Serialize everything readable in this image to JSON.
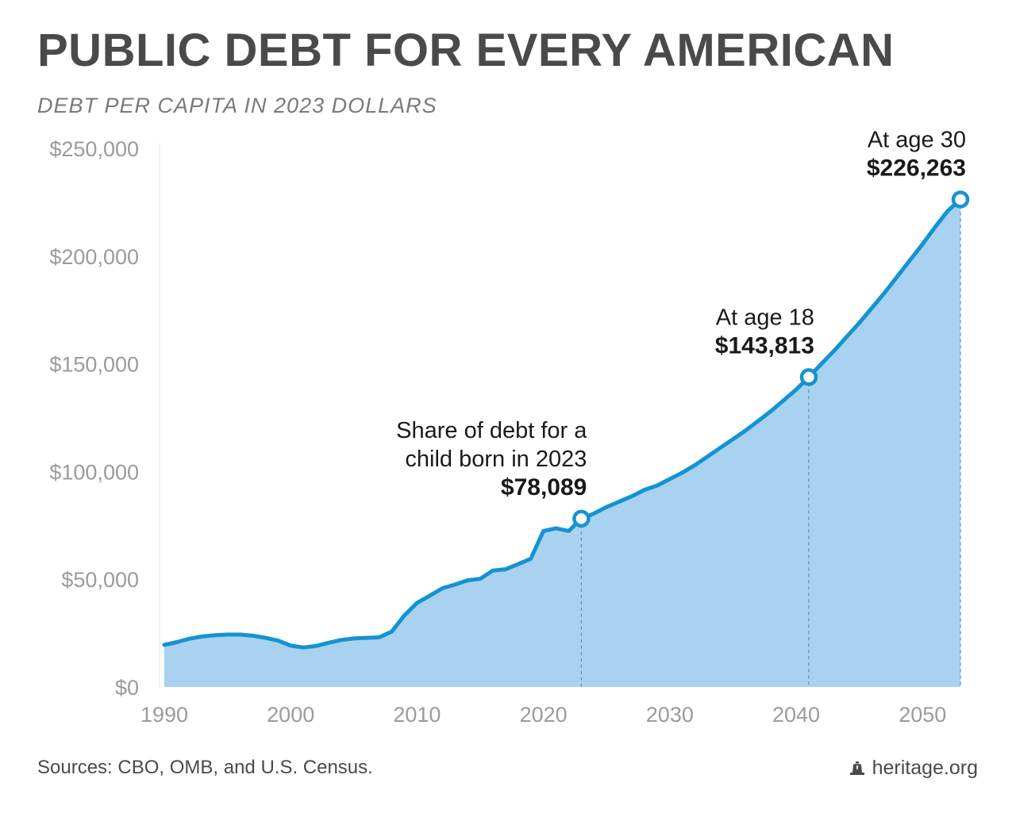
{
  "header": {
    "title": "PUBLIC DEBT FOR EVERY AMERICAN",
    "subtitle": "DEBT PER CAPITA IN 2023 DOLLARS"
  },
  "footer": {
    "source": "Sources: CBO, OMB, and U.S. Census.",
    "brand": "heritage.org",
    "brand_icon": "liberty-bell-icon"
  },
  "colors": {
    "line": "#1493d3",
    "area": "#a8d2f0",
    "axis_text": "#9b9b9b",
    "annotation_text": "#1a1a1a"
  },
  "chart_data": {
    "type": "area",
    "title": "PUBLIC DEBT FOR EVERY AMERICAN",
    "subtitle": "DEBT PER CAPITA IN 2023 DOLLARS",
    "xlim": [
      1990,
      2053
    ],
    "ylim": [
      0,
      250000
    ],
    "x_ticks": [
      1990,
      2000,
      2010,
      2020,
      2030,
      2040,
      2050
    ],
    "y_ticks": [
      0,
      50000,
      100000,
      150000,
      200000,
      250000
    ],
    "y_tick_labels": [
      "$0",
      "$50,000",
      "$100,000",
      "$150,000",
      "$200,000",
      "$250,000"
    ],
    "grid": false,
    "x": [
      1990,
      1991,
      1992,
      1993,
      1994,
      1995,
      1996,
      1997,
      1998,
      1999,
      2000,
      2001,
      2002,
      2003,
      2004,
      2005,
      2006,
      2007,
      2008,
      2009,
      2010,
      2011,
      2012,
      2013,
      2014,
      2015,
      2016,
      2017,
      2018,
      2019,
      2020,
      2021,
      2022,
      2023,
      2024,
      2025,
      2026,
      2027,
      2028,
      2029,
      2030,
      2031,
      2032,
      2033,
      2034,
      2035,
      2036,
      2037,
      2038,
      2039,
      2040,
      2041,
      2042,
      2043,
      2044,
      2045,
      2046,
      2047,
      2048,
      2049,
      2050,
      2051,
      2052,
      2053
    ],
    "values": [
      19500,
      20800,
      22400,
      23400,
      24000,
      24300,
      24300,
      23800,
      22800,
      21500,
      19200,
      18300,
      19000,
      20500,
      21800,
      22500,
      22800,
      23000,
      25700,
      33200,
      39000,
      42300,
      45800,
      47500,
      49500,
      50200,
      54000,
      54600,
      57000,
      59500,
      72400,
      73600,
      72400,
      78089,
      80500,
      83500,
      86000,
      88500,
      91500,
      93500,
      96500,
      99500,
      103000,
      107000,
      111000,
      115000,
      119000,
      123500,
      128000,
      133000,
      138000,
      143813,
      150000,
      156000,
      162500,
      169000,
      176000,
      183000,
      190500,
      198000,
      205500,
      213500,
      221000,
      226263
    ],
    "annotations": [
      {
        "x": 2023,
        "y": 78089,
        "lines": [
          "Share of debt for a",
          "child born in 2023"
        ],
        "value": "$78,089"
      },
      {
        "x": 2041,
        "y": 143813,
        "lines": [
          "At age 18"
        ],
        "value": "$143,813"
      },
      {
        "x": 2053,
        "y": 226263,
        "lines": [
          "At age 30"
        ],
        "value": "$226,263"
      }
    ]
  }
}
